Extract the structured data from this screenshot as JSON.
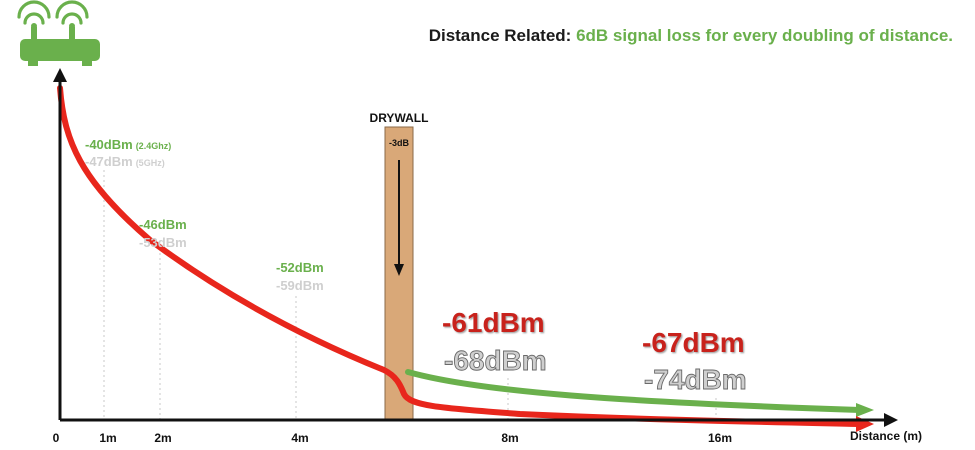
{
  "title": {
    "lead": "Distance Related:",
    "highlight": "6dB signal loss for every doubling of distance."
  },
  "router_icon": "wifi-router-icon",
  "colors": {
    "green": "#6ab04c",
    "red": "#e8261c",
    "gray": "#cfcfcf",
    "wall": "#d9a878"
  },
  "chart_data": {
    "type": "line",
    "xlabel": "Distance (m)",
    "x_ticks": [
      "0",
      "1m",
      "2m",
      "4m",
      "8m",
      "16m"
    ],
    "series": [
      {
        "name": "2.4Ghz",
        "color": "green",
        "labels": [
          {
            "at": "1m",
            "text": "-40dBm",
            "suffix": "(2.4Ghz)"
          },
          {
            "at": "2m",
            "text": "-46dBm"
          },
          {
            "at": "4m",
            "text": "-52dBm"
          },
          {
            "at": "8m",
            "text": "-61dBm"
          },
          {
            "at": "16m",
            "text": "-67dBm"
          }
        ]
      },
      {
        "name": "5GHz",
        "color": "gray",
        "labels": [
          {
            "at": "1m",
            "text": "-47dBm",
            "suffix": "(5GHz)"
          },
          {
            "at": "2m",
            "text": "-53dBm"
          },
          {
            "at": "4m",
            "text": "-59dBm"
          },
          {
            "at": "8m",
            "text": "-68dBm"
          },
          {
            "at": "16m",
            "text": "-74dBm"
          }
        ]
      }
    ],
    "obstacle": {
      "label": "DRYWALL",
      "loss": "-3dB"
    }
  }
}
